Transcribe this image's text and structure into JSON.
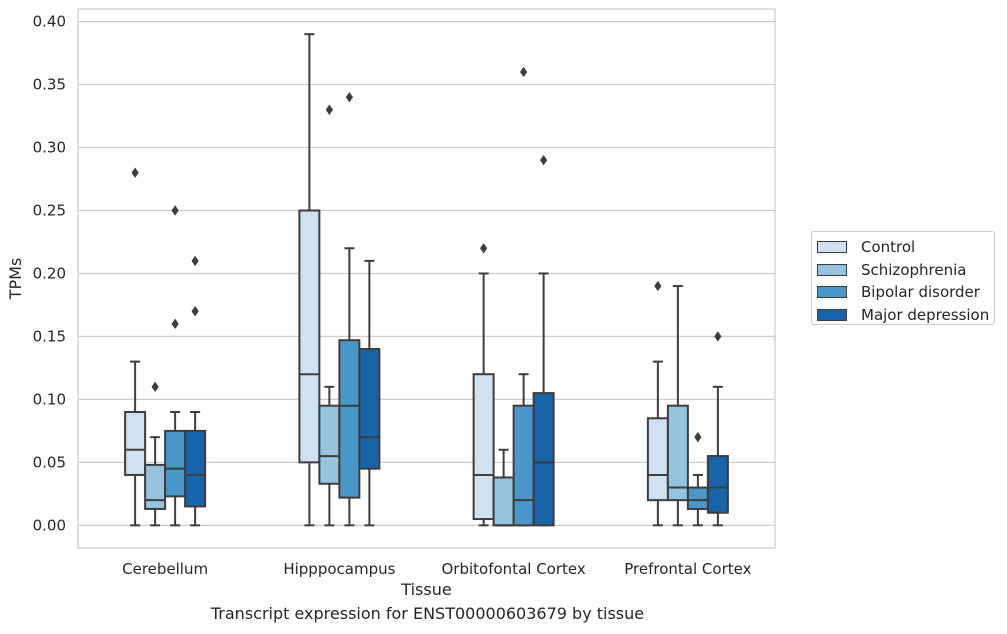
{
  "chart_data": {
    "type": "box",
    "caption": "Transcript expression for ENST00000603679 by tissue",
    "xlabel": "Tissue",
    "ylabel": "TPMs",
    "ylim": [
      -0.018,
      0.41
    ],
    "yticks": [
      "0.00",
      "0.05",
      "0.10",
      "0.15",
      "0.20",
      "0.25",
      "0.30",
      "0.35",
      "0.40"
    ],
    "grid": true,
    "legend_position": "right",
    "categories": [
      "Cerebellum",
      "Hipppocampus",
      "Orbitofontal Cortex",
      "Prefrontal Cortex"
    ],
    "series": [
      {
        "name": "Control",
        "color": "#d0e1f2",
        "boxes": [
          {
            "whisker_low": 0.0,
            "q1": 0.04,
            "median": 0.06,
            "q3": 0.09,
            "whisker_high": 0.13,
            "outliers": [
              0.28
            ]
          },
          {
            "whisker_low": 0.0,
            "q1": 0.05,
            "median": 0.12,
            "q3": 0.25,
            "whisker_high": 0.39,
            "outliers": []
          },
          {
            "whisker_low": 0.0,
            "q1": 0.005,
            "median": 0.04,
            "q3": 0.12,
            "whisker_high": 0.2,
            "outliers": [
              0.22
            ]
          },
          {
            "whisker_low": 0.0,
            "q1": 0.02,
            "median": 0.04,
            "q3": 0.085,
            "whisker_high": 0.13,
            "outliers": [
              0.19
            ]
          }
        ]
      },
      {
        "name": "Schizophrenia",
        "color": "#94c4df",
        "boxes": [
          {
            "whisker_low": 0.0,
            "q1": 0.013,
            "median": 0.02,
            "q3": 0.048,
            "whisker_high": 0.07,
            "outliers": [
              0.11
            ]
          },
          {
            "whisker_low": 0.0,
            "q1": 0.033,
            "median": 0.055,
            "q3": 0.095,
            "whisker_high": 0.11,
            "outliers": [
              0.33
            ]
          },
          {
            "whisker_low": 0.0,
            "q1": 0.0,
            "median": 0.0,
            "q3": 0.038,
            "whisker_high": 0.06,
            "outliers": []
          },
          {
            "whisker_low": 0.0,
            "q1": 0.02,
            "median": 0.03,
            "q3": 0.095,
            "whisker_high": 0.19,
            "outliers": []
          }
        ]
      },
      {
        "name": "Bipolar disorder",
        "color": "#4a98c9",
        "boxes": [
          {
            "whisker_low": 0.0,
            "q1": 0.023,
            "median": 0.045,
            "q3": 0.075,
            "whisker_high": 0.09,
            "outliers": [
              0.16,
              0.25
            ]
          },
          {
            "whisker_low": 0.0,
            "q1": 0.022,
            "median": 0.095,
            "q3": 0.147,
            "whisker_high": 0.22,
            "outliers": [
              0.34
            ]
          },
          {
            "whisker_low": 0.0,
            "q1": 0.0,
            "median": 0.02,
            "q3": 0.095,
            "whisker_high": 0.12,
            "outliers": [
              0.36
            ]
          },
          {
            "whisker_low": 0.0,
            "q1": 0.013,
            "median": 0.02,
            "q3": 0.03,
            "whisker_high": 0.04,
            "outliers": [
              0.07
            ]
          }
        ]
      },
      {
        "name": "Major depression",
        "color": "#1764ab",
        "boxes": [
          {
            "whisker_low": 0.0,
            "q1": 0.015,
            "median": 0.04,
            "q3": 0.075,
            "whisker_high": 0.09,
            "outliers": [
              0.17,
              0.21
            ]
          },
          {
            "whisker_low": 0.0,
            "q1": 0.045,
            "median": 0.07,
            "q3": 0.14,
            "whisker_high": 0.21,
            "outliers": []
          },
          {
            "whisker_low": 0.0,
            "q1": 0.0,
            "median": 0.05,
            "q3": 0.105,
            "whisker_high": 0.2,
            "outliers": [
              0.29
            ]
          },
          {
            "whisker_low": 0.0,
            "q1": 0.01,
            "median": 0.03,
            "q3": 0.055,
            "whisker_high": 0.11,
            "outliers": [
              0.15
            ]
          }
        ]
      }
    ]
  }
}
